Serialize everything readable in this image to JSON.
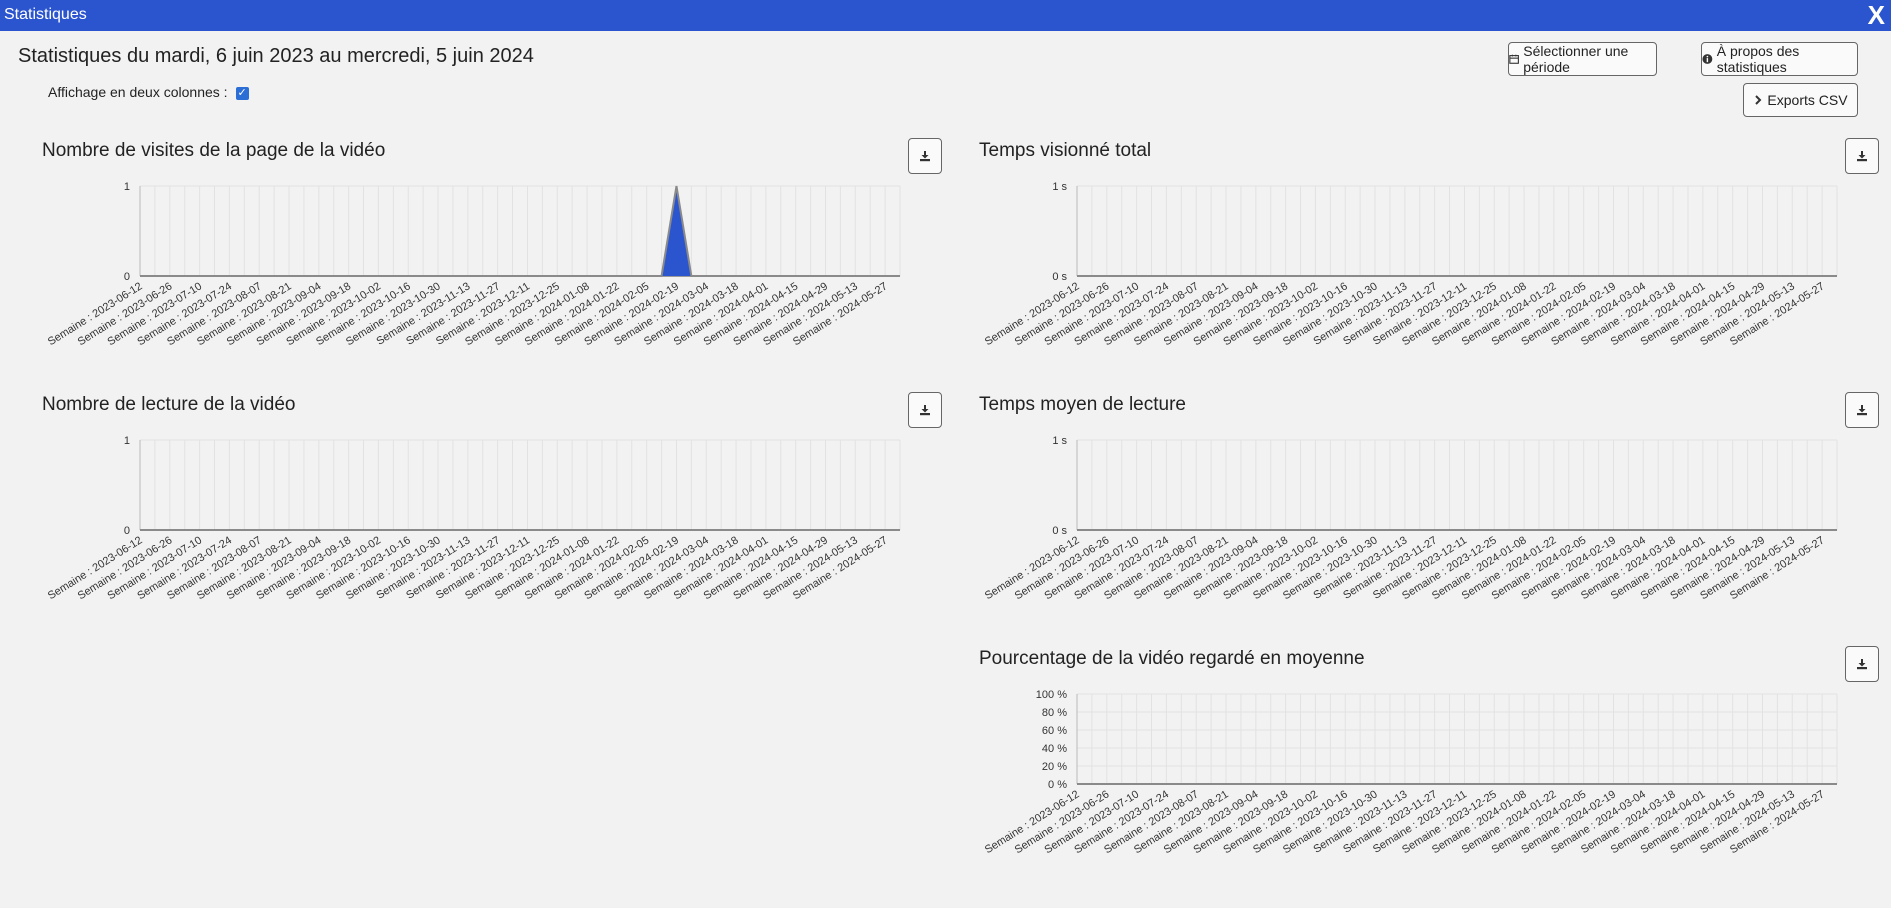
{
  "window": {
    "title": "Statistiques",
    "close_label": "X"
  },
  "header": {
    "heading": "Statistiques du mardi, 6 juin 2023 au mercredi, 5 juin 2024",
    "two_columns_label": "Affichage en deux colonnes :",
    "two_columns_checked": true
  },
  "buttons": {
    "select_period": "Sélectionner une période",
    "about_stats": "À propos des statistiques",
    "exports_csv": "Exports CSV"
  },
  "chart_data": [
    {
      "type": "area",
      "title": "Nombre de visites de la page de la vidéo",
      "categories": [
        "Semaine : 2023-06-12",
        "Semaine : 2023-06-26",
        "Semaine : 2023-07-10",
        "Semaine : 2023-07-24",
        "Semaine : 2023-08-07",
        "Semaine : 2023-08-21",
        "Semaine : 2023-09-04",
        "Semaine : 2023-09-18",
        "Semaine : 2023-10-02",
        "Semaine : 2023-10-16",
        "Semaine : 2023-10-30",
        "Semaine : 2023-11-13",
        "Semaine : 2023-11-27",
        "Semaine : 2023-12-11",
        "Semaine : 2023-12-25",
        "Semaine : 2024-01-08",
        "Semaine : 2024-01-22",
        "Semaine : 2024-02-05",
        "Semaine : 2024-02-19",
        "Semaine : 2024-03-04",
        "Semaine : 2024-03-18",
        "Semaine : 2024-04-01",
        "Semaine : 2024-04-15",
        "Semaine : 2024-04-29",
        "Semaine : 2024-05-13",
        "Semaine : 2024-05-27"
      ],
      "weekly_values": [
        0,
        0,
        0,
        0,
        0,
        0,
        0,
        0,
        0,
        0,
        0,
        0,
        0,
        0,
        0,
        0,
        0,
        0,
        0,
        0,
        0,
        0,
        0,
        0,
        0,
        0,
        0,
        0,
        0,
        0,
        0,
        0,
        0,
        0,
        0,
        0,
        1,
        0,
        0,
        0,
        0,
        0,
        0,
        0,
        0,
        0,
        0,
        0,
        0,
        0,
        0,
        0
      ],
      "yticks": [
        "0",
        "1"
      ],
      "ylim": [
        0,
        1
      ],
      "color": "#2b55cf"
    },
    {
      "type": "area",
      "title": "Temps visionné total",
      "categories": [
        "Semaine : 2023-06-12",
        "Semaine : 2023-06-26",
        "Semaine : 2023-07-10",
        "Semaine : 2023-07-24",
        "Semaine : 2023-08-07",
        "Semaine : 2023-08-21",
        "Semaine : 2023-09-04",
        "Semaine : 2023-09-18",
        "Semaine : 2023-10-02",
        "Semaine : 2023-10-16",
        "Semaine : 2023-10-30",
        "Semaine : 2023-11-13",
        "Semaine : 2023-11-27",
        "Semaine : 2023-12-11",
        "Semaine : 2023-12-25",
        "Semaine : 2024-01-08",
        "Semaine : 2024-01-22",
        "Semaine : 2024-02-05",
        "Semaine : 2024-02-19",
        "Semaine : 2024-03-04",
        "Semaine : 2024-03-18",
        "Semaine : 2024-04-01",
        "Semaine : 2024-04-15",
        "Semaine : 2024-04-29",
        "Semaine : 2024-05-13",
        "Semaine : 2024-05-27"
      ],
      "weekly_values": [
        0,
        0,
        0,
        0,
        0,
        0,
        0,
        0,
        0,
        0,
        0,
        0,
        0,
        0,
        0,
        0,
        0,
        0,
        0,
        0,
        0,
        0,
        0,
        0,
        0,
        0,
        0,
        0,
        0,
        0,
        0,
        0,
        0,
        0,
        0,
        0,
        0,
        0,
        0,
        0,
        0,
        0,
        0,
        0,
        0,
        0,
        0,
        0,
        0,
        0,
        0,
        0
      ],
      "yticks": [
        "0 s",
        "1 s"
      ],
      "ylim": [
        0,
        1
      ],
      "color": "#2b55cf"
    },
    {
      "type": "area",
      "title": "Nombre de lecture de la vidéo",
      "categories": [
        "Semaine : 2023-06-12",
        "Semaine : 2023-06-26",
        "Semaine : 2023-07-10",
        "Semaine : 2023-07-24",
        "Semaine : 2023-08-07",
        "Semaine : 2023-08-21",
        "Semaine : 2023-09-04",
        "Semaine : 2023-09-18",
        "Semaine : 2023-10-02",
        "Semaine : 2023-10-16",
        "Semaine : 2023-10-30",
        "Semaine : 2023-11-13",
        "Semaine : 2023-11-27",
        "Semaine : 2023-12-11",
        "Semaine : 2023-12-25",
        "Semaine : 2024-01-08",
        "Semaine : 2024-01-22",
        "Semaine : 2024-02-05",
        "Semaine : 2024-02-19",
        "Semaine : 2024-03-04",
        "Semaine : 2024-03-18",
        "Semaine : 2024-04-01",
        "Semaine : 2024-04-15",
        "Semaine : 2024-04-29",
        "Semaine : 2024-05-13",
        "Semaine : 2024-05-27"
      ],
      "weekly_values": [
        0,
        0,
        0,
        0,
        0,
        0,
        0,
        0,
        0,
        0,
        0,
        0,
        0,
        0,
        0,
        0,
        0,
        0,
        0,
        0,
        0,
        0,
        0,
        0,
        0,
        0,
        0,
        0,
        0,
        0,
        0,
        0,
        0,
        0,
        0,
        0,
        0,
        0,
        0,
        0,
        0,
        0,
        0,
        0,
        0,
        0,
        0,
        0,
        0,
        0,
        0,
        0
      ],
      "yticks": [
        "0",
        "1"
      ],
      "ylim": [
        0,
        1
      ],
      "color": "#2b55cf"
    },
    {
      "type": "area",
      "title": "Temps moyen de lecture",
      "categories": [
        "Semaine : 2023-06-12",
        "Semaine : 2023-06-26",
        "Semaine : 2023-07-10",
        "Semaine : 2023-07-24",
        "Semaine : 2023-08-07",
        "Semaine : 2023-08-21",
        "Semaine : 2023-09-04",
        "Semaine : 2023-09-18",
        "Semaine : 2023-10-02",
        "Semaine : 2023-10-16",
        "Semaine : 2023-10-30",
        "Semaine : 2023-11-13",
        "Semaine : 2023-11-27",
        "Semaine : 2023-12-11",
        "Semaine : 2023-12-25",
        "Semaine : 2024-01-08",
        "Semaine : 2024-01-22",
        "Semaine : 2024-02-05",
        "Semaine : 2024-02-19",
        "Semaine : 2024-03-04",
        "Semaine : 2024-03-18",
        "Semaine : 2024-04-01",
        "Semaine : 2024-04-15",
        "Semaine : 2024-04-29",
        "Semaine : 2024-05-13",
        "Semaine : 2024-05-27"
      ],
      "weekly_values": [
        0,
        0,
        0,
        0,
        0,
        0,
        0,
        0,
        0,
        0,
        0,
        0,
        0,
        0,
        0,
        0,
        0,
        0,
        0,
        0,
        0,
        0,
        0,
        0,
        0,
        0,
        0,
        0,
        0,
        0,
        0,
        0,
        0,
        0,
        0,
        0,
        0,
        0,
        0,
        0,
        0,
        0,
        0,
        0,
        0,
        0,
        0,
        0,
        0,
        0,
        0,
        0
      ],
      "yticks": [
        "0 s",
        "1 s"
      ],
      "ylim": [
        0,
        1
      ],
      "color": "#2b55cf"
    },
    {
      "type": "area",
      "title": "Pourcentage de la vidéo regardé en moyenne",
      "categories": [
        "Semaine : 2023-06-12",
        "Semaine : 2023-06-26",
        "Semaine : 2023-07-10",
        "Semaine : 2023-07-24",
        "Semaine : 2023-08-07",
        "Semaine : 2023-08-21",
        "Semaine : 2023-09-04",
        "Semaine : 2023-09-18",
        "Semaine : 2023-10-02",
        "Semaine : 2023-10-16",
        "Semaine : 2023-10-30",
        "Semaine : 2023-11-13",
        "Semaine : 2023-11-27",
        "Semaine : 2023-12-11",
        "Semaine : 2023-12-25",
        "Semaine : 2024-01-08",
        "Semaine : 2024-01-22",
        "Semaine : 2024-02-05",
        "Semaine : 2024-02-19",
        "Semaine : 2024-03-04",
        "Semaine : 2024-03-18",
        "Semaine : 2024-04-01",
        "Semaine : 2024-04-15",
        "Semaine : 2024-04-29",
        "Semaine : 2024-05-13",
        "Semaine : 2024-05-27"
      ],
      "weekly_values": [
        0,
        0,
        0,
        0,
        0,
        0,
        0,
        0,
        0,
        0,
        0,
        0,
        0,
        0,
        0,
        0,
        0,
        0,
        0,
        0,
        0,
        0,
        0,
        0,
        0,
        0,
        0,
        0,
        0,
        0,
        0,
        0,
        0,
        0,
        0,
        0,
        0,
        0,
        0,
        0,
        0,
        0,
        0,
        0,
        0,
        0,
        0,
        0,
        0,
        0,
        0,
        0
      ],
      "yticks": [
        "0 %",
        "20 %",
        "40 %",
        "60 %",
        "80 %",
        "100 %"
      ],
      "ylim": [
        0,
        100
      ],
      "color": "#2b55cf"
    }
  ]
}
